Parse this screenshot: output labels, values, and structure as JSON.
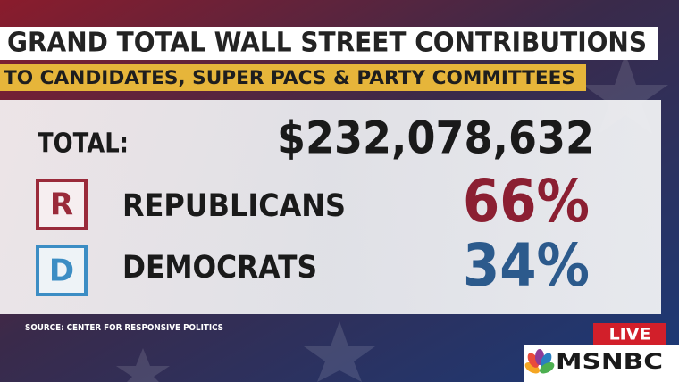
{
  "header": {
    "title": "GRAND TOTAL WALL STREET CONTRIBUTIONS",
    "subtitle": "TO CANDIDATES, SUPER PACS & PARTY COMMITTEES"
  },
  "total": {
    "label": "TOTAL:",
    "amount": "$232,078,632"
  },
  "parties": [
    {
      "letter": "R",
      "name": "REPUBLICANS",
      "share": "66%"
    },
    {
      "letter": "D",
      "name": "DEMOCRATS",
      "share": "34%"
    }
  ],
  "source": "SOURCE: CENTER FOR RESPONSIVE POLITICS",
  "live": "LIVE",
  "network": "MSNBC"
}
